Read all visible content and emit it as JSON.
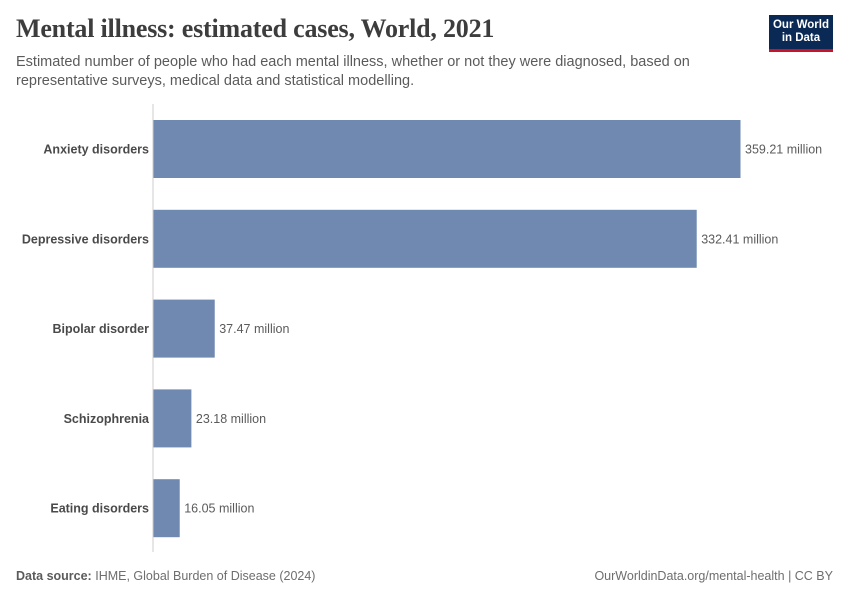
{
  "header": {
    "title": "Mental illness: estimated cases, World, 2021",
    "subtitle": "Estimated number of people who had each mental illness, whether or not they were diagnosed, based on representative surveys, medical data and statistical modelling."
  },
  "logo": {
    "line1": "Our World",
    "line2": "in Data"
  },
  "footer": {
    "source_label": "Data source:",
    "source_text": "IHME, Global Burden of Disease (2024)",
    "right_text": "OurWorldinData.org/mental-health | CC BY"
  },
  "colors": {
    "bar": "#6f89b0",
    "axis": "#cccccc",
    "brand_bg": "#0a2a55",
    "brand_accent": "#c8142a"
  },
  "chart_data": {
    "type": "bar",
    "orientation": "horizontal",
    "categories": [
      "Anxiety disorders",
      "Depressive disorders",
      "Bipolar disorder",
      "Schizophrenia",
      "Eating disorders"
    ],
    "values": [
      359.21,
      332.41,
      37.47,
      23.18,
      16.05
    ],
    "value_labels": [
      "359.21 million",
      "332.41 million",
      "37.47 million",
      "23.18 million",
      "16.05 million"
    ],
    "unit": "million",
    "xlim": [
      0,
      359.21
    ],
    "grid": false,
    "legend": "none"
  }
}
